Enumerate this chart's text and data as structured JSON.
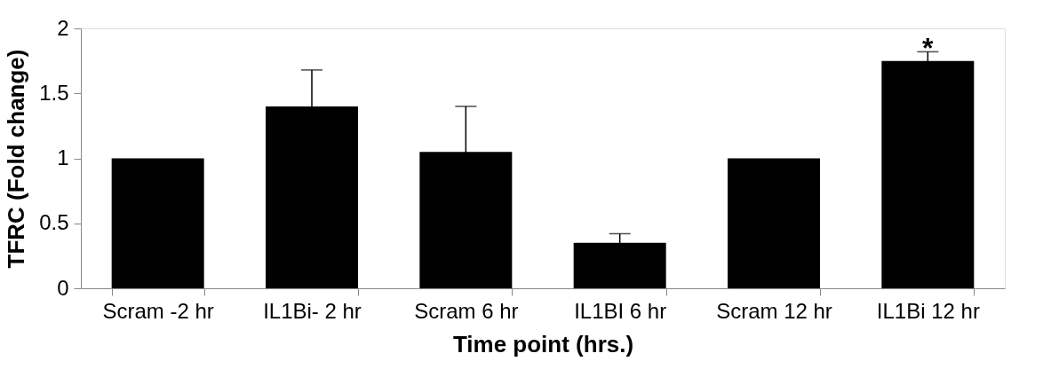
{
  "chart_data": {
    "type": "bar",
    "xlabel": "Time point (hrs.)",
    "ylabel": "TFRC (Fold change)",
    "categories": [
      "Scram -2 hr",
      "IL1Bi- 2 hr",
      "Scram 6 hr",
      "IL1BI 6 hr",
      "Scram 12 hr",
      "IL1Bi 12 hr"
    ],
    "values": [
      1.0,
      1.4,
      1.05,
      0.35,
      1.0,
      1.75
    ],
    "errors": [
      null,
      0.28,
      0.35,
      0.07,
      null,
      0.07
    ],
    "color": "#000000",
    "ylim": [
      0,
      2
    ],
    "yticks": [
      0,
      0.5,
      1,
      1.5,
      2
    ],
    "grid": false,
    "annotations": [
      {
        "text": "*",
        "x": "IL1Bi 12 hr",
        "y": 1.82
      }
    ]
  }
}
